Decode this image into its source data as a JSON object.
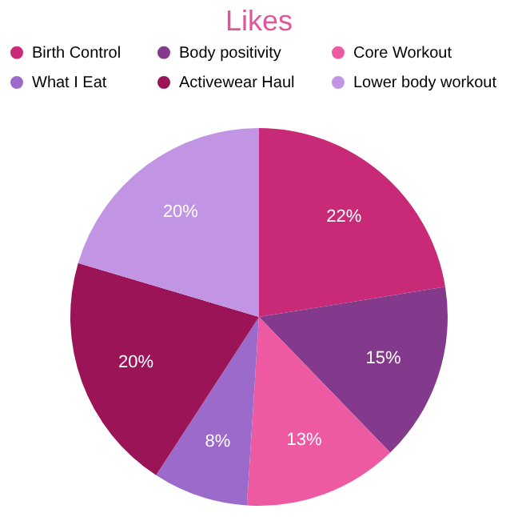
{
  "chart_data": {
    "type": "pie",
    "title": "Likes",
    "categories": [
      "Birth Control",
      "Body positivity",
      "Core Workout",
      "What I Eat",
      "Activewear Haul",
      "Lower body workout"
    ],
    "values": [
      22,
      15,
      13,
      8,
      20,
      20
    ],
    "value_labels": [
      "22%",
      "15%",
      "13%",
      "8%",
      "20%",
      "20%"
    ],
    "colors": [
      "#c92a78",
      "#843a8c",
      "#ee5aa2",
      "#9c6acb",
      "#9b1458",
      "#c195e3"
    ],
    "legend": "top"
  }
}
